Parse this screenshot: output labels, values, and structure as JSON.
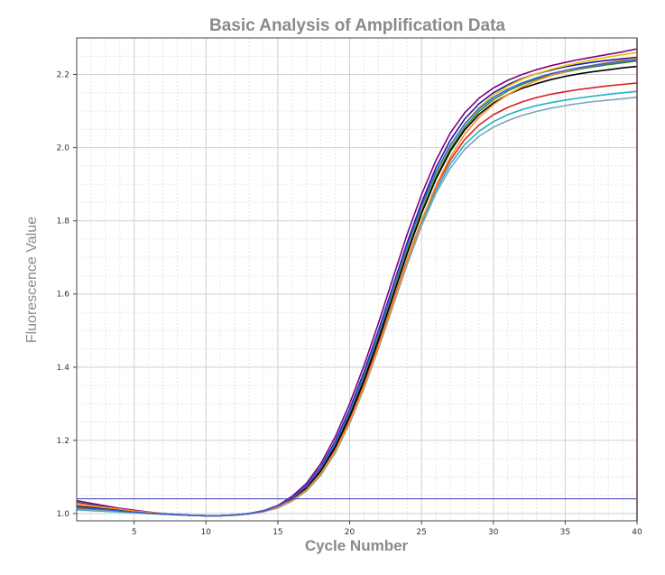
{
  "chart_data": {
    "type": "line",
    "title": "Basic Analysis of Amplification Data",
    "xlabel": "Cycle Number",
    "ylabel": "Fluorescence Value",
    "xlim": [
      1,
      40
    ],
    "ylim": [
      0.98,
      2.3
    ],
    "x_ticks": [
      5,
      10,
      15,
      20,
      25,
      30,
      35,
      40
    ],
    "y_ticks": [
      1.0,
      1.2,
      1.4,
      1.6,
      1.8,
      2.0,
      2.2
    ],
    "grid": true,
    "threshold": 1.04,
    "x": [
      1,
      2,
      3,
      4,
      5,
      6,
      7,
      8,
      9,
      10,
      11,
      12,
      13,
      14,
      15,
      16,
      17,
      18,
      19,
      20,
      21,
      22,
      23,
      24,
      25,
      26,
      27,
      28,
      29,
      30,
      31,
      32,
      33,
      34,
      35,
      36,
      37,
      38,
      39,
      40
    ],
    "series": [
      {
        "color": "#800080",
        "values": [
          1.035,
          1.028,
          1.021,
          1.014,
          1.009,
          1.004,
          1.0,
          0.997,
          0.995,
          0.994,
          0.994,
          0.996,
          1.0,
          1.008,
          1.022,
          1.047,
          1.083,
          1.137,
          1.21,
          1.3,
          1.405,
          1.52,
          1.642,
          1.763,
          1.872,
          1.965,
          2.04,
          2.095,
          2.135,
          2.163,
          2.184,
          2.2,
          2.213,
          2.224,
          2.233,
          2.241,
          2.248,
          2.255,
          2.262,
          2.27
        ]
      },
      {
        "color": "#1a1aa6",
        "values": [
          1.03,
          1.024,
          1.018,
          1.012,
          1.007,
          1.003,
          1.0,
          0.997,
          0.995,
          0.994,
          0.994,
          0.996,
          1.0,
          1.007,
          1.02,
          1.043,
          1.077,
          1.128,
          1.198,
          1.285,
          1.388,
          1.5,
          1.62,
          1.74,
          1.85,
          1.945,
          2.02,
          2.078,
          2.12,
          2.15,
          2.172,
          2.189,
          2.202,
          2.212,
          2.221,
          2.228,
          2.234,
          2.239,
          2.243,
          2.247
        ]
      },
      {
        "color": "#e6c200",
        "values": [
          1.025,
          1.02,
          1.015,
          1.01,
          1.006,
          1.002,
          0.999,
          0.997,
          0.995,
          0.994,
          0.994,
          0.996,
          1.0,
          1.007,
          1.019,
          1.041,
          1.074,
          1.123,
          1.19,
          1.275,
          1.376,
          1.487,
          1.605,
          1.724,
          1.834,
          1.928,
          2.005,
          2.065,
          2.11,
          2.143,
          2.168,
          2.187,
          2.202,
          2.214,
          2.224,
          2.233,
          2.241,
          2.248,
          2.254,
          2.26
        ]
      },
      {
        "color": "#2e8b2e",
        "values": [
          1.02,
          1.016,
          1.012,
          1.008,
          1.005,
          1.002,
          0.999,
          0.997,
          0.995,
          0.994,
          0.994,
          0.996,
          1.0,
          1.007,
          1.019,
          1.04,
          1.072,
          1.12,
          1.186,
          1.27,
          1.37,
          1.48,
          1.598,
          1.716,
          1.826,
          1.92,
          1.996,
          2.055,
          2.099,
          2.131,
          2.155,
          2.173,
          2.187,
          2.198,
          2.207,
          2.215,
          2.221,
          2.227,
          2.232,
          2.237
        ]
      },
      {
        "color": "#d82020",
        "values": [
          1.015,
          1.012,
          1.009,
          1.006,
          1.003,
          1.001,
          0.999,
          0.997,
          0.995,
          0.994,
          0.994,
          0.996,
          1.0,
          1.006,
          1.017,
          1.037,
          1.067,
          1.112,
          1.175,
          1.256,
          1.353,
          1.461,
          1.576,
          1.693,
          1.801,
          1.893,
          1.966,
          2.022,
          2.062,
          2.09,
          2.11,
          2.125,
          2.137,
          2.146,
          2.153,
          2.159,
          2.164,
          2.169,
          2.173,
          2.177
        ]
      },
      {
        "color": "#000000",
        "values": [
          1.02,
          1.016,
          1.012,
          1.008,
          1.005,
          1.002,
          0.999,
          0.997,
          0.995,
          0.994,
          0.994,
          0.996,
          1.0,
          1.007,
          1.018,
          1.039,
          1.07,
          1.117,
          1.182,
          1.265,
          1.364,
          1.474,
          1.592,
          1.71,
          1.82,
          1.914,
          1.99,
          2.048,
          2.091,
          2.122,
          2.145,
          2.162,
          2.175,
          2.186,
          2.195,
          2.202,
          2.208,
          2.213,
          2.218,
          2.222
        ]
      },
      {
        "color": "#20b2c8",
        "values": [
          1.01,
          1.008,
          1.006,
          1.004,
          1.002,
          1.0,
          0.998,
          0.996,
          0.995,
          0.994,
          0.994,
          0.996,
          0.999,
          1.005,
          1.016,
          1.035,
          1.064,
          1.108,
          1.169,
          1.249,
          1.345,
          1.453,
          1.568,
          1.684,
          1.792,
          1.883,
          1.955,
          2.008,
          2.045,
          2.071,
          2.09,
          2.104,
          2.115,
          2.123,
          2.13,
          2.136,
          2.141,
          2.146,
          2.15,
          2.154
        ]
      },
      {
        "color": "#7aa6b8",
        "values": [
          1.012,
          1.009,
          1.007,
          1.005,
          1.003,
          1.001,
          0.999,
          0.997,
          0.995,
          0.994,
          0.994,
          0.995,
          0.999,
          1.005,
          1.015,
          1.034,
          1.062,
          1.105,
          1.166,
          1.246,
          1.342,
          1.45,
          1.565,
          1.68,
          1.786,
          1.875,
          1.944,
          1.995,
          2.031,
          2.056,
          2.074,
          2.088,
          2.099,
          2.108,
          2.115,
          2.121,
          2.126,
          2.13,
          2.134,
          2.138
        ]
      },
      {
        "color": "#ff8c1a",
        "values": [
          1.028,
          1.022,
          1.017,
          1.012,
          1.007,
          1.003,
          1.0,
          0.997,
          0.995,
          0.994,
          0.994,
          0.996,
          1.0,
          1.006,
          1.017,
          1.036,
          1.065,
          1.11,
          1.172,
          1.252,
          1.348,
          1.456,
          1.572,
          1.69,
          1.8,
          1.896,
          1.974,
          2.036,
          2.083,
          2.118,
          2.145,
          2.166,
          2.183,
          2.197,
          2.208,
          2.218,
          2.226,
          2.233,
          2.239,
          2.244
        ]
      },
      {
        "color": "#3a5fd8",
        "values": [
          1.018,
          1.014,
          1.011,
          1.007,
          1.004,
          1.001,
          0.999,
          0.997,
          0.995,
          0.994,
          0.994,
          0.996,
          1.0,
          1.007,
          1.02,
          1.042,
          1.075,
          1.125,
          1.193,
          1.279,
          1.381,
          1.493,
          1.612,
          1.731,
          1.84,
          1.933,
          2.007,
          2.064,
          2.106,
          2.137,
          2.16,
          2.177,
          2.191,
          2.202,
          2.211,
          2.219,
          2.225,
          2.231,
          2.236,
          2.24
        ]
      }
    ]
  }
}
